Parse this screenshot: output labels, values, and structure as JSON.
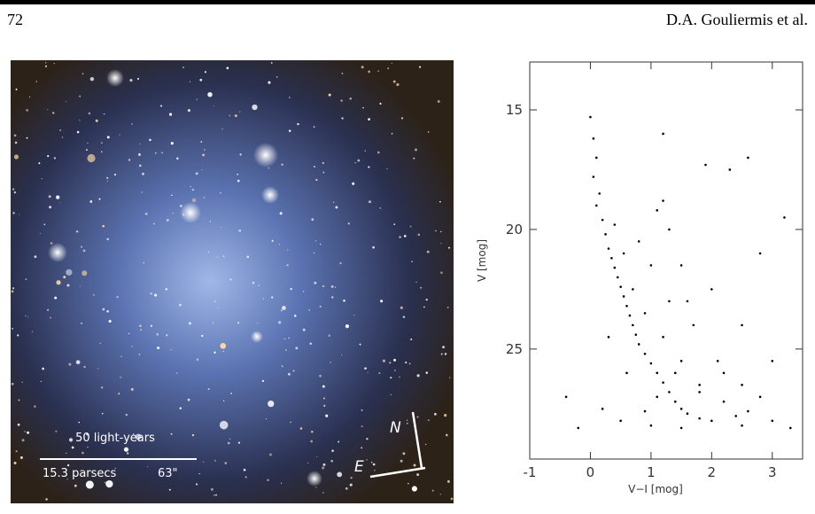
{
  "header": {
    "page_number": "72",
    "running_head": "D.A. Gouliermis et al."
  },
  "image": {
    "scale_bar": {
      "light_years": "50 light-years",
      "parsecs": "15.3 parsecs",
      "arcsec": "63\""
    },
    "compass": {
      "north": "N",
      "east": "E"
    }
  },
  "chart_data": {
    "type": "scatter",
    "x_label": "V−I [mog]",
    "y_label": "V [mog]",
    "xlim": [
      -1,
      3.5
    ],
    "ylim": [
      29.6,
      13
    ],
    "xticks": [
      -1,
      0,
      1,
      2,
      3
    ],
    "yticks": [
      15,
      20,
      25
    ],
    "color": "#000",
    "x": [
      0.0,
      0.05,
      0.1,
      0.05,
      0.15,
      0.1,
      0.2,
      0.25,
      0.3,
      0.35,
      0.4,
      0.45,
      0.5,
      0.55,
      0.6,
      0.65,
      0.7,
      0.75,
      0.8,
      0.9,
      1.0,
      1.1,
      1.2,
      1.3,
      1.4,
      1.5,
      1.6,
      1.8,
      2.0,
      0.9,
      1.2,
      1.5,
      1.8,
      2.2,
      2.6,
      3.0,
      1.0,
      1.3,
      1.7,
      2.1,
      2.5,
      0.8,
      1.1,
      1.3,
      1.5,
      2.0,
      2.5,
      3.0,
      1.2,
      2.6,
      1.9,
      1.2,
      2.3,
      3.2,
      2.8,
      0.4,
      0.3,
      0.6,
      0.2,
      -0.2,
      0.5,
      1.0,
      1.5,
      2.5,
      3.3,
      1.8,
      1.4,
      2.4,
      1.1,
      0.7,
      0.55,
      1.6,
      2.2,
      2.8,
      0.9,
      -0.4
    ],
    "values": [
      15.3,
      16.2,
      17.0,
      17.8,
      18.5,
      19.0,
      19.6,
      20.2,
      20.8,
      21.2,
      21.6,
      22.0,
      22.4,
      22.8,
      23.2,
      23.6,
      24.0,
      24.4,
      24.8,
      25.2,
      25.6,
      26.0,
      26.4,
      26.8,
      27.2,
      27.5,
      27.7,
      27.9,
      28.0,
      23.5,
      24.5,
      25.5,
      26.5,
      27.2,
      27.6,
      28.0,
      21.5,
      23.0,
      24.0,
      25.5,
      26.5,
      20.5,
      19.2,
      20.0,
      21.5,
      22.5,
      24.0,
      25.5,
      18.8,
      17.0,
      17.3,
      16.0,
      17.5,
      19.5,
      21.0,
      19.8,
      24.5,
      26.0,
      27.5,
      28.3,
      28.0,
      28.2,
      28.3,
      28.2,
      28.3,
      26.8,
      26.0,
      27.8,
      27.0,
      22.5,
      21.0,
      23.0,
      26.0,
      27.0,
      27.6,
      27.0
    ]
  }
}
